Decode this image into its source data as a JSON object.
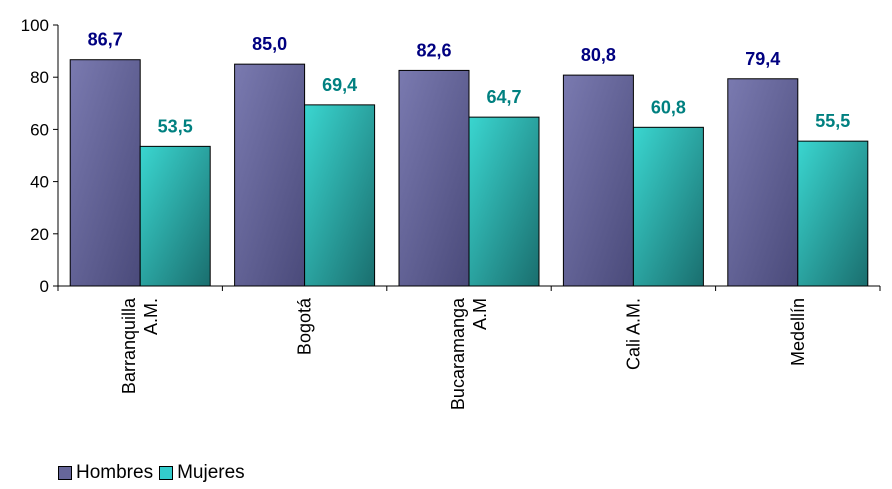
{
  "chart_data": {
    "type": "bar",
    "categories": [
      [
        "Barranquilla",
        "A.M."
      ],
      [
        "Bogotá"
      ],
      [
        "Bucaramanga",
        "A.M"
      ],
      [
        "Cali A.M."
      ],
      [
        "Medellín"
      ]
    ],
    "series": [
      {
        "name": "Hombres",
        "values": [
          86.7,
          85.0,
          82.6,
          80.8,
          79.4
        ],
        "labels": [
          "86,7",
          "85,0",
          "82,6",
          "80,8",
          "79,4"
        ],
        "color": "#66669a",
        "label_color": "#000080"
      },
      {
        "name": "Mujeres",
        "values": [
          53.5,
          69.4,
          64.7,
          60.8,
          55.5
        ],
        "labels": [
          "53,5",
          "69,4",
          "64,7",
          "60,8",
          "55,5"
        ],
        "color": "#33cccc",
        "label_color": "#008080"
      }
    ],
    "ylim": [
      0,
      100
    ],
    "yticks": [
      0,
      20,
      40,
      60,
      80,
      100
    ],
    "legend": "bottom-left",
    "grid": false
  }
}
